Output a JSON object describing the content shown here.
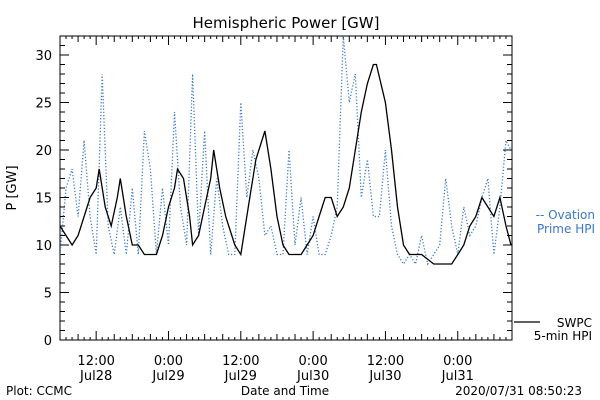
{
  "chart_data": {
    "type": "line",
    "title": "Hemispheric Power [GW]",
    "ylabel": "P [GW]",
    "xlabel": "Date and Time",
    "ylim": [
      0,
      32
    ],
    "xlim": [
      "2020-07-28 06:00",
      "2020-07-31 09:00"
    ],
    "yticks": [
      0,
      5,
      10,
      15,
      20,
      25,
      30
    ],
    "xticks": [
      {
        "time": "2020-07-28 12:00",
        "top": "12:00",
        "bottom": "Jul28"
      },
      {
        "time": "2020-07-29 00:00",
        "top": "0:00",
        "bottom": "Jul29"
      },
      {
        "time": "2020-07-29 12:00",
        "top": "12:00",
        "bottom": "Jul29"
      },
      {
        "time": "2020-07-30 00:00",
        "top": "0:00",
        "bottom": "Jul30"
      },
      {
        "time": "2020-07-30 12:00",
        "top": "12:00",
        "bottom": "Jul30"
      },
      {
        "time": "2020-07-31 00:00",
        "top": "0:00",
        "bottom": "Jul31"
      }
    ],
    "grid": false,
    "series": [
      {
        "name_line1": "SWPC",
        "name_line2": "5-min HPI",
        "style": "solid",
        "color": "#000000",
        "points": [
          [
            "2020-07-28 06:00",
            12
          ],
          [
            "2020-07-28 07:00",
            11
          ],
          [
            "2020-07-28 08:00",
            10
          ],
          [
            "2020-07-28 09:00",
            11
          ],
          [
            "2020-07-28 10:00",
            13
          ],
          [
            "2020-07-28 11:00",
            15
          ],
          [
            "2020-07-28 12:00",
            16
          ],
          [
            "2020-07-28 12:30",
            18
          ],
          [
            "2020-07-28 13:30",
            14
          ],
          [
            "2020-07-28 14:30",
            12
          ],
          [
            "2020-07-28 15:30",
            15
          ],
          [
            "2020-07-28 16:00",
            17
          ],
          [
            "2020-07-28 17:00",
            13
          ],
          [
            "2020-07-28 18:00",
            10
          ],
          [
            "2020-07-28 19:00",
            10
          ],
          [
            "2020-07-28 20:00",
            9
          ],
          [
            "2020-07-28 22:00",
            9
          ],
          [
            "2020-07-28 23:00",
            11
          ],
          [
            "2020-07-29 00:00",
            14
          ],
          [
            "2020-07-29 01:00",
            16
          ],
          [
            "2020-07-29 01:30",
            18
          ],
          [
            "2020-07-29 02:30",
            17
          ],
          [
            "2020-07-29 03:30",
            13
          ],
          [
            "2020-07-29 04:00",
            10
          ],
          [
            "2020-07-29 05:00",
            11
          ],
          [
            "2020-07-29 06:00",
            14
          ],
          [
            "2020-07-29 07:00",
            17
          ],
          [
            "2020-07-29 07:30",
            20
          ],
          [
            "2020-07-29 08:30",
            16
          ],
          [
            "2020-07-29 09:30",
            13
          ],
          [
            "2020-07-29 10:30",
            11
          ],
          [
            "2020-07-29 11:00",
            10
          ],
          [
            "2020-07-29 12:00",
            9
          ],
          [
            "2020-07-29 12:30",
            11
          ],
          [
            "2020-07-29 13:30",
            15
          ],
          [
            "2020-07-29 14:30",
            19
          ],
          [
            "2020-07-29 15:30",
            21
          ],
          [
            "2020-07-29 16:00",
            22
          ],
          [
            "2020-07-29 17:00",
            18
          ],
          [
            "2020-07-29 18:00",
            13
          ],
          [
            "2020-07-29 19:00",
            10
          ],
          [
            "2020-07-29 20:00",
            9
          ],
          [
            "2020-07-29 22:00",
            9
          ],
          [
            "2020-07-29 23:00",
            10
          ],
          [
            "2020-07-30 00:00",
            11
          ],
          [
            "2020-07-30 01:00",
            13
          ],
          [
            "2020-07-30 02:00",
            15
          ],
          [
            "2020-07-30 03:00",
            15
          ],
          [
            "2020-07-30 04:00",
            13
          ],
          [
            "2020-07-30 05:00",
            14
          ],
          [
            "2020-07-30 06:00",
            16
          ],
          [
            "2020-07-30 07:00",
            20
          ],
          [
            "2020-07-30 08:00",
            24
          ],
          [
            "2020-07-30 09:00",
            27
          ],
          [
            "2020-07-30 10:00",
            29
          ],
          [
            "2020-07-30 10:30",
            29
          ],
          [
            "2020-07-30 12:00",
            25
          ],
          [
            "2020-07-30 13:00",
            20
          ],
          [
            "2020-07-30 14:00",
            14
          ],
          [
            "2020-07-30 15:00",
            10
          ],
          [
            "2020-07-30 16:00",
            9
          ],
          [
            "2020-07-30 17:00",
            9
          ],
          [
            "2020-07-30 18:00",
            9
          ],
          [
            "2020-07-30 20:00",
            8
          ],
          [
            "2020-07-30 23:00",
            8
          ],
          [
            "2020-07-31 00:00",
            9
          ],
          [
            "2020-07-31 01:00",
            10
          ],
          [
            "2020-07-31 02:00",
            12
          ],
          [
            "2020-07-31 03:00",
            13
          ],
          [
            "2020-07-31 04:00",
            15
          ],
          [
            "2020-07-31 05:00",
            14
          ],
          [
            "2020-07-31 06:00",
            13
          ],
          [
            "2020-07-31 07:00",
            15
          ],
          [
            "2020-07-31 08:00",
            12
          ],
          [
            "2020-07-31 08:50",
            10
          ]
        ]
      },
      {
        "name_line1": "-- Ovation",
        "name_line2": "Prime HPI",
        "style": "dotted",
        "color": "#3a78c8",
        "points": [
          [
            "2020-07-28 06:00",
            9
          ],
          [
            "2020-07-28 07:00",
            16
          ],
          [
            "2020-07-28 08:00",
            18
          ],
          [
            "2020-07-28 09:00",
            13
          ],
          [
            "2020-07-28 10:00",
            21
          ],
          [
            "2020-07-28 11:00",
            13
          ],
          [
            "2020-07-28 12:00",
            9
          ],
          [
            "2020-07-28 13:00",
            28
          ],
          [
            "2020-07-28 14:00",
            12
          ],
          [
            "2020-07-28 15:00",
            9
          ],
          [
            "2020-07-28 16:00",
            14
          ],
          [
            "2020-07-28 17:00",
            9
          ],
          [
            "2020-07-28 18:00",
            16
          ],
          [
            "2020-07-28 19:00",
            9
          ],
          [
            "2020-07-28 20:00",
            22
          ],
          [
            "2020-07-28 21:00",
            18
          ],
          [
            "2020-07-28 22:00",
            9
          ],
          [
            "2020-07-28 23:00",
            16
          ],
          [
            "2020-07-29 00:00",
            10
          ],
          [
            "2020-07-29 01:00",
            24
          ],
          [
            "2020-07-29 02:00",
            14
          ],
          [
            "2020-07-29 03:00",
            10
          ],
          [
            "2020-07-29 04:00",
            28
          ],
          [
            "2020-07-29 05:00",
            11
          ],
          [
            "2020-07-29 06:00",
            22
          ],
          [
            "2020-07-29 07:00",
            9
          ],
          [
            "2020-07-29 08:00",
            17
          ],
          [
            "2020-07-29 09:00",
            12
          ],
          [
            "2020-07-29 10:00",
            9
          ],
          [
            "2020-07-29 11:00",
            9
          ],
          [
            "2020-07-29 12:00",
            25
          ],
          [
            "2020-07-29 13:00",
            15
          ],
          [
            "2020-07-29 14:00",
            20
          ],
          [
            "2020-07-29 15:00",
            17
          ],
          [
            "2020-07-29 16:00",
            11
          ],
          [
            "2020-07-29 17:00",
            12
          ],
          [
            "2020-07-29 18:00",
            9
          ],
          [
            "2020-07-29 19:00",
            9
          ],
          [
            "2020-07-29 20:00",
            20
          ],
          [
            "2020-07-29 21:00",
            10
          ],
          [
            "2020-07-29 22:00",
            15
          ],
          [
            "2020-07-29 23:00",
            9
          ],
          [
            "2020-07-30 00:00",
            13
          ],
          [
            "2020-07-30 01:00",
            9
          ],
          [
            "2020-07-30 02:00",
            9
          ],
          [
            "2020-07-30 03:00",
            11
          ],
          [
            "2020-07-30 04:00",
            14
          ],
          [
            "2020-07-30 05:00",
            32
          ],
          [
            "2020-07-30 06:00",
            25
          ],
          [
            "2020-07-30 07:00",
            28
          ],
          [
            "2020-07-30 08:00",
            15
          ],
          [
            "2020-07-30 09:00",
            19
          ],
          [
            "2020-07-30 10:00",
            13
          ],
          [
            "2020-07-30 11:00",
            13
          ],
          [
            "2020-07-30 12:00",
            20
          ],
          [
            "2020-07-30 13:00",
            12
          ],
          [
            "2020-07-30 14:00",
            9
          ],
          [
            "2020-07-30 15:00",
            8
          ],
          [
            "2020-07-30 16:00",
            9
          ],
          [
            "2020-07-30 17:00",
            8
          ],
          [
            "2020-07-30 18:00",
            11
          ],
          [
            "2020-07-30 19:00",
            8
          ],
          [
            "2020-07-30 20:00",
            9
          ],
          [
            "2020-07-30 21:00",
            10
          ],
          [
            "2020-07-30 22:00",
            17
          ],
          [
            "2020-07-30 23:00",
            12
          ],
          [
            "2020-07-31 00:00",
            9
          ],
          [
            "2020-07-31 01:00",
            14
          ],
          [
            "2020-07-31 02:00",
            11
          ],
          [
            "2020-07-31 03:00",
            12
          ],
          [
            "2020-07-31 04:00",
            15
          ],
          [
            "2020-07-31 05:00",
            17
          ],
          [
            "2020-07-31 06:00",
            9
          ],
          [
            "2020-07-31 07:00",
            14
          ],
          [
            "2020-07-31 08:00",
            21
          ],
          [
            "2020-07-31 08:50",
            20
          ]
        ]
      }
    ]
  },
  "footer": {
    "left": "Plot: CCMC",
    "right": "2020/07/31 08:50:23"
  }
}
